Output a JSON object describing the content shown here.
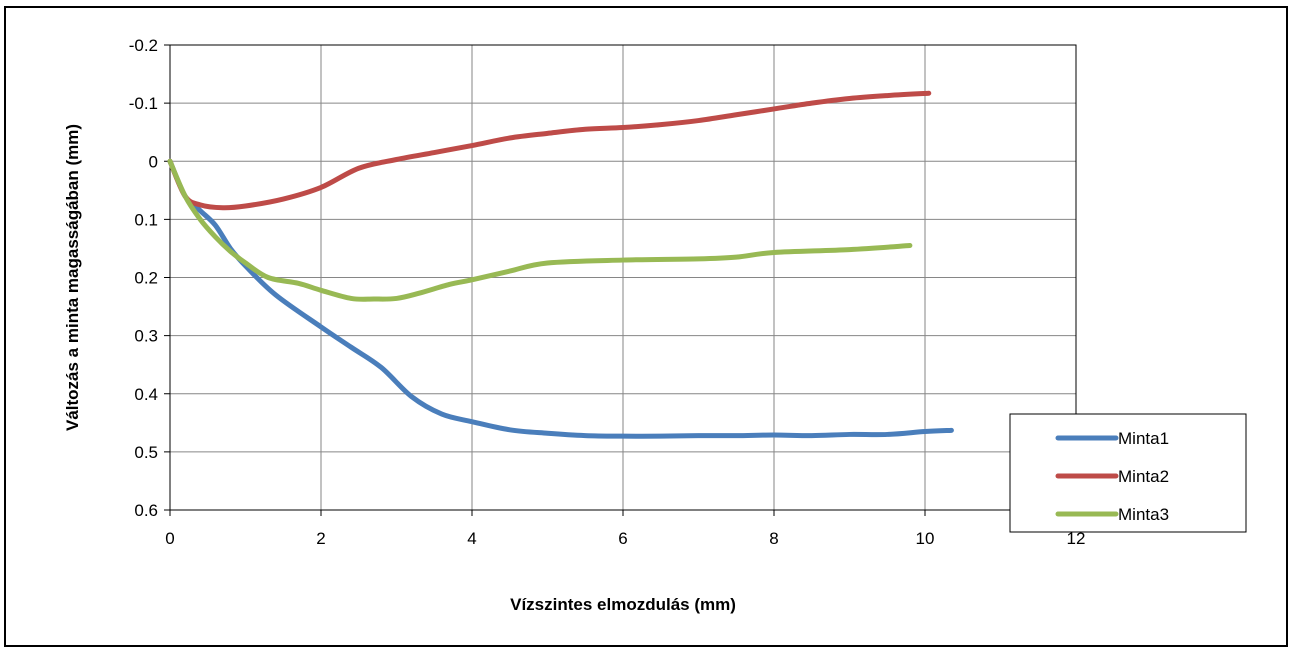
{
  "chart_data": {
    "type": "line",
    "title": "",
    "xlabel": "Vízszintes elmozdulás (mm)",
    "ylabel": "Változás a minta magasságában (mm)",
    "xlim": [
      0,
      12
    ],
    "ylim": [
      -0.2,
      0.6
    ],
    "y_inverted": true,
    "x_ticks": [
      "0",
      "2",
      "4",
      "6",
      "8",
      "10",
      "12"
    ],
    "y_ticks": [
      "-0.2",
      "-0.1",
      "0",
      "0.1",
      "0.2",
      "0.3",
      "0.4",
      "0.5",
      "0.6"
    ],
    "grid": true,
    "legend_position": "bottom-right",
    "series": [
      {
        "name": "Minta1",
        "color": "#4a7ebb",
        "x": [
          0,
          0.2,
          0.4,
          0.6,
          0.8,
          1.0,
          1.4,
          2.0,
          2.4,
          2.8,
          3.2,
          3.6,
          4.0,
          4.5,
          5.0,
          5.5,
          6.0,
          6.5,
          7.0,
          7.5,
          8.0,
          8.5,
          9.0,
          9.5,
          10.0,
          10.35
        ],
        "y": [
          0,
          0.06,
          0.085,
          0.11,
          0.15,
          0.18,
          0.23,
          0.285,
          0.32,
          0.355,
          0.405,
          0.435,
          0.448,
          0.462,
          0.468,
          0.472,
          0.473,
          0.473,
          0.472,
          0.472,
          0.471,
          0.472,
          0.47,
          0.47,
          0.465,
          0.463
        ]
      },
      {
        "name": "Minta2",
        "color": "#be4b48",
        "x": [
          0,
          0.2,
          0.4,
          0.7,
          1.0,
          1.5,
          2.0,
          2.5,
          3.0,
          3.5,
          4.0,
          4.5,
          5.0,
          5.5,
          6.0,
          6.5,
          7.0,
          7.5,
          8.0,
          8.5,
          9.0,
          9.5,
          10.05
        ],
        "y": [
          0,
          0.06,
          0.075,
          0.08,
          0.077,
          0.065,
          0.045,
          0.012,
          -0.003,
          -0.015,
          -0.027,
          -0.04,
          -0.048,
          -0.055,
          -0.058,
          -0.063,
          -0.07,
          -0.08,
          -0.09,
          -0.1,
          -0.108,
          -0.113,
          -0.117
        ]
      },
      {
        "name": "Minta3",
        "color": "#98b954",
        "x": [
          0,
          0.2,
          0.4,
          0.6,
          0.8,
          1.0,
          1.3,
          1.7,
          2.0,
          2.4,
          2.7,
          3.0,
          3.3,
          3.7,
          4.0,
          4.5,
          5.0,
          6.0,
          7.0,
          7.5,
          8.0,
          9.0,
          9.8
        ],
        "y": [
          0,
          0.06,
          0.1,
          0.13,
          0.155,
          0.175,
          0.2,
          0.21,
          0.222,
          0.236,
          0.237,
          0.236,
          0.227,
          0.212,
          0.204,
          0.189,
          0.175,
          0.17,
          0.168,
          0.165,
          0.157,
          0.152,
          0.145
        ]
      }
    ]
  }
}
